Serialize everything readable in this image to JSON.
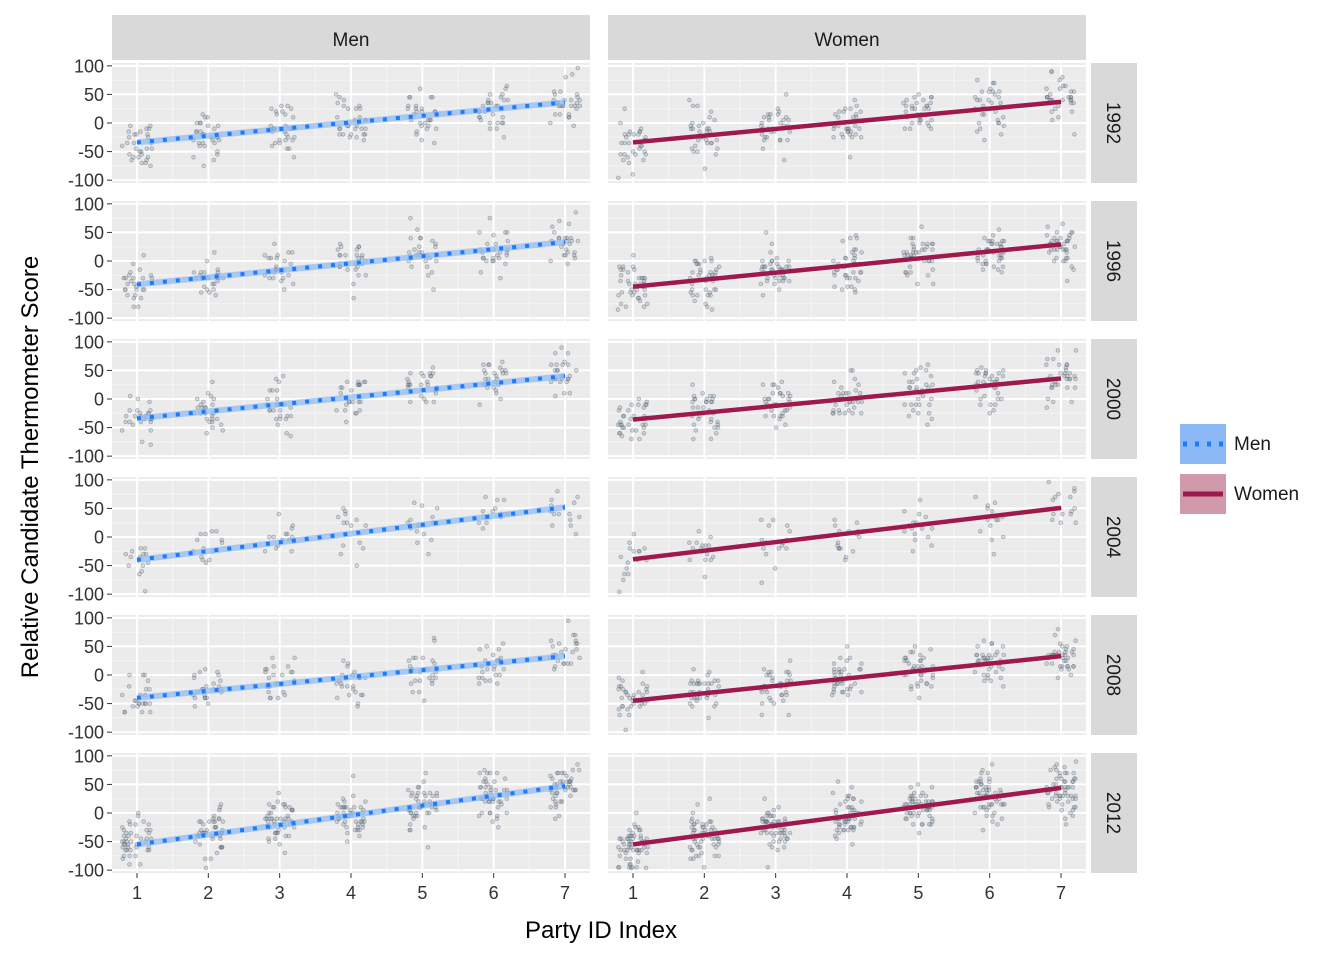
{
  "chart_data": {
    "type": "scatter",
    "title": "",
    "xlabel": "Party ID Index",
    "ylabel": "Relative Candidate Thermometer Score",
    "x_ticks": [
      1,
      2,
      3,
      4,
      5,
      6,
      7
    ],
    "y_ticks": [
      100,
      50,
      0,
      -50,
      -100
    ],
    "xlim": [
      0.65,
      7.35
    ],
    "ylim": [
      -105,
      105
    ],
    "grid": true,
    "facet_columns": [
      "Men",
      "Women"
    ],
    "facet_rows": [
      "1992",
      "1996",
      "2000",
      "2004",
      "2008",
      "2012"
    ],
    "legend": {
      "position": "right",
      "entries": [
        {
          "name": "Men",
          "color": "#1e7bff",
          "style": "dotted"
        },
        {
          "name": "Women",
          "color": "#9e1a4e",
          "style": "solid"
        }
      ]
    },
    "series": [
      {
        "name": "Men",
        "color": "#1e7bff",
        "fill": "#8cb9f5",
        "line": "dotted",
        "fits": [
          {
            "year": "1992",
            "x": [
              1,
              7
            ],
            "y": [
              -34,
              36
            ]
          },
          {
            "year": "1996",
            "x": [
              1,
              7
            ],
            "y": [
              -41,
              33
            ]
          },
          {
            "year": "2000",
            "x": [
              1,
              7
            ],
            "y": [
              -34,
              40
            ]
          },
          {
            "year": "2004",
            "x": [
              1,
              7
            ],
            "y": [
              -40,
              52
            ]
          },
          {
            "year": "2008",
            "x": [
              1,
              7
            ],
            "y": [
              -40,
              33
            ]
          },
          {
            "year": "2012",
            "x": [
              1,
              7
            ],
            "y": [
              -55,
              47
            ]
          }
        ]
      },
      {
        "name": "Women",
        "color": "#9e1a4e",
        "fill": "#d19aaa",
        "line": "solid",
        "fits": [
          {
            "year": "1992",
            "x": [
              1,
              7
            ],
            "y": [
              -34,
              37
            ]
          },
          {
            "year": "1996",
            "x": [
              1,
              7
            ],
            "y": [
              -45,
              29
            ]
          },
          {
            "year": "2000",
            "x": [
              1,
              7
            ],
            "y": [
              -36,
              36
            ]
          },
          {
            "year": "2004",
            "x": [
              1,
              7
            ],
            "y": [
              -39,
              51
            ]
          },
          {
            "year": "2008",
            "x": [
              1,
              7
            ],
            "y": [
              -45,
              33
            ]
          },
          {
            "year": "2012",
            "x": [
              1,
              7
            ],
            "y": [
              -55,
              44
            ]
          }
        ]
      }
    ],
    "points": {
      "color": "#5f6e7e",
      "description_n_per_category": {
        "1992": [
          30,
          32
        ],
        "1996": [
          26,
          40
        ],
        "2000": [
          26,
          34
        ],
        "2004": [
          14,
          16
        ],
        "2008": [
          24,
          38
        ],
        "2012": [
          46,
          58
        ]
      },
      "spread_sd": 22
    }
  }
}
